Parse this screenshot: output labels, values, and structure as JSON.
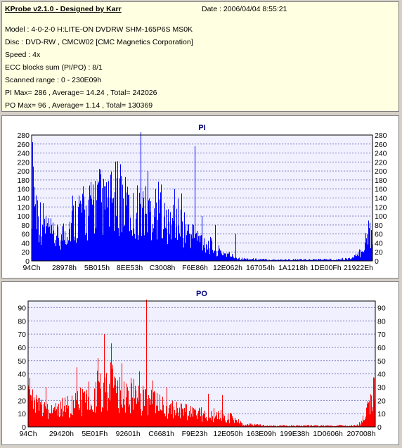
{
  "header": {
    "title": "KProbe v2.1.0 - Designed by Karr",
    "date": "Date : 2006/04/04 8:55:21",
    "lines": [
      "Model : 4-0-2-0 H:LITE-ON DVDRW SHM-165P6S MS0K",
      "Disc : DVD-RW , CMCW02 [CMC Magnetics Corporation]",
      "Speed : 4x",
      "ECC blocks sum (PI/PO) : 8/1",
      "Scanned range : 0 - 230E09h",
      "PI Max= 286 , Average= 14.24 , Total= 242026",
      "PO Max= 96 , Average= 1.14 , Total= 130369"
    ]
  },
  "chart_data": [
    {
      "type": "bar",
      "title": "PI",
      "color": "#0000ff",
      "ylim": [
        0,
        280
      ],
      "ytick_labels": [
        "0",
        "20",
        "40",
        "60",
        "80",
        "100",
        "120",
        "140",
        "160",
        "180",
        "200",
        "220",
        "240",
        "260",
        "280"
      ],
      "xtick_labels": [
        "94Ch",
        "28978h",
        "5B015h",
        "8EE53h",
        "C3008h",
        "F6E86h",
        "12E062h",
        "167054h",
        "1A1218h",
        "1DE00Fh",
        "21922Eh"
      ],
      "x_range": [
        "94Ch",
        "230E09h"
      ],
      "max": 286,
      "average": 14.24,
      "profile": [
        [
          0.0,
          205
        ],
        [
          0.01,
          150
        ],
        [
          0.02,
          110
        ],
        [
          0.04,
          85
        ],
        [
          0.06,
          60
        ],
        [
          0.08,
          55
        ],
        [
          0.1,
          75
        ],
        [
          0.12,
          95
        ],
        [
          0.14,
          125
        ],
        [
          0.16,
          110
        ],
        [
          0.18,
          140
        ],
        [
          0.2,
          150
        ],
        [
          0.22,
          120
        ],
        [
          0.24,
          150
        ],
        [
          0.26,
          160
        ],
        [
          0.28,
          120
        ],
        [
          0.3,
          110
        ],
        [
          0.32,
          140
        ],
        [
          0.34,
          115
        ],
        [
          0.36,
          130
        ],
        [
          0.38,
          120
        ],
        [
          0.4,
          80
        ],
        [
          0.42,
          105
        ],
        [
          0.44,
          90
        ],
        [
          0.46,
          70
        ],
        [
          0.48,
          60
        ],
        [
          0.5,
          50
        ],
        [
          0.52,
          40
        ],
        [
          0.54,
          28
        ],
        [
          0.56,
          20
        ],
        [
          0.58,
          15
        ],
        [
          0.6,
          8
        ],
        [
          0.62,
          5
        ],
        [
          0.66,
          4
        ],
        [
          0.7,
          3
        ],
        [
          0.8,
          3
        ],
        [
          0.9,
          4
        ],
        [
          0.94,
          6
        ],
        [
          0.96,
          15
        ],
        [
          0.98,
          45
        ],
        [
          1.0,
          80
        ]
      ],
      "spikes": [
        [
          0.005,
          210
        ],
        [
          0.32,
          286
        ],
        [
          0.48,
          255
        ],
        [
          0.26,
          215
        ],
        [
          0.34,
          200
        ],
        [
          0.22,
          175
        ],
        [
          0.18,
          170
        ],
        [
          0.42,
          160
        ],
        [
          0.28,
          165
        ],
        [
          0.38,
          170
        ],
        [
          0.44,
          150
        ],
        [
          0.12,
          145
        ],
        [
          0.5,
          100
        ],
        [
          0.54,
          80
        ],
        [
          0.6,
          60
        ],
        [
          0.99,
          90
        ]
      ]
    },
    {
      "type": "bar",
      "title": "PO",
      "color": "#ff0000",
      "ylim": [
        0,
        95
      ],
      "ytick_labels": [
        "0",
        "10",
        "20",
        "30",
        "40",
        "50",
        "60",
        "70",
        "80",
        "90"
      ],
      "xtick_labels": [
        "94Ch",
        "29420h",
        "5E01Fh",
        "92601h",
        "C6681h",
        "F9E23h",
        "12E050h",
        "163E09h",
        "199E38h",
        "1D0606h",
        "207008h"
      ],
      "x_range": [
        "94Ch",
        "230E09h"
      ],
      "max": 96,
      "average": 1.14,
      "profile": [
        [
          0.0,
          30
        ],
        [
          0.01,
          22
        ],
        [
          0.02,
          18
        ],
        [
          0.05,
          15
        ],
        [
          0.08,
          14
        ],
        [
          0.1,
          16
        ],
        [
          0.12,
          18
        ],
        [
          0.14,
          20
        ],
        [
          0.16,
          22
        ],
        [
          0.18,
          25
        ],
        [
          0.2,
          30
        ],
        [
          0.22,
          32
        ],
        [
          0.24,
          35
        ],
        [
          0.26,
          30
        ],
        [
          0.28,
          28
        ],
        [
          0.3,
          26
        ],
        [
          0.32,
          24
        ],
        [
          0.34,
          22
        ],
        [
          0.36,
          20
        ],
        [
          0.38,
          18
        ],
        [
          0.4,
          16
        ],
        [
          0.42,
          14
        ],
        [
          0.44,
          13
        ],
        [
          0.46,
          12
        ],
        [
          0.48,
          12
        ],
        [
          0.5,
          11
        ],
        [
          0.52,
          10
        ],
        [
          0.54,
          10
        ],
        [
          0.56,
          9
        ],
        [
          0.58,
          8
        ],
        [
          0.6,
          5
        ],
        [
          0.62,
          2
        ],
        [
          0.7,
          1
        ],
        [
          0.8,
          1
        ],
        [
          0.9,
          1
        ],
        [
          0.94,
          1
        ],
        [
          0.96,
          3
        ],
        [
          0.98,
          15
        ],
        [
          1.0,
          30
        ]
      ],
      "spikes": [
        [
          0.005,
          37
        ],
        [
          0.05,
          30
        ],
        [
          0.14,
          45
        ],
        [
          0.2,
          52
        ],
        [
          0.22,
          70
        ],
        [
          0.24,
          63
        ],
        [
          0.27,
          48
        ],
        [
          0.32,
          42
        ],
        [
          0.34,
          96
        ],
        [
          0.36,
          35
        ],
        [
          0.4,
          30
        ],
        [
          0.52,
          25
        ],
        [
          0.56,
          24
        ],
        [
          0.998,
          37
        ]
      ]
    }
  ]
}
